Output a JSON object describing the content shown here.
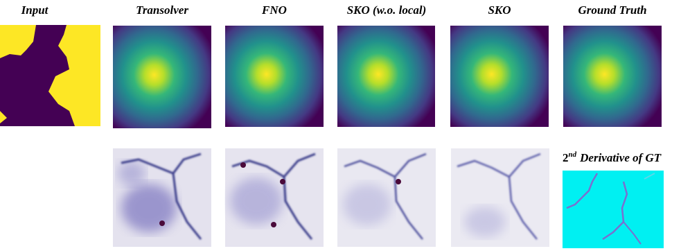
{
  "columns": [
    {
      "title": "Input"
    },
    {
      "title": "Transolver"
    },
    {
      "title": "FNO"
    },
    {
      "title": "SKO (w.o. local)"
    },
    {
      "title": "SKO"
    },
    {
      "title": "Ground Truth"
    }
  ],
  "derivative_label": {
    "base": "2",
    "superscript": "nd",
    "text": "Derivative of GT"
  }
}
